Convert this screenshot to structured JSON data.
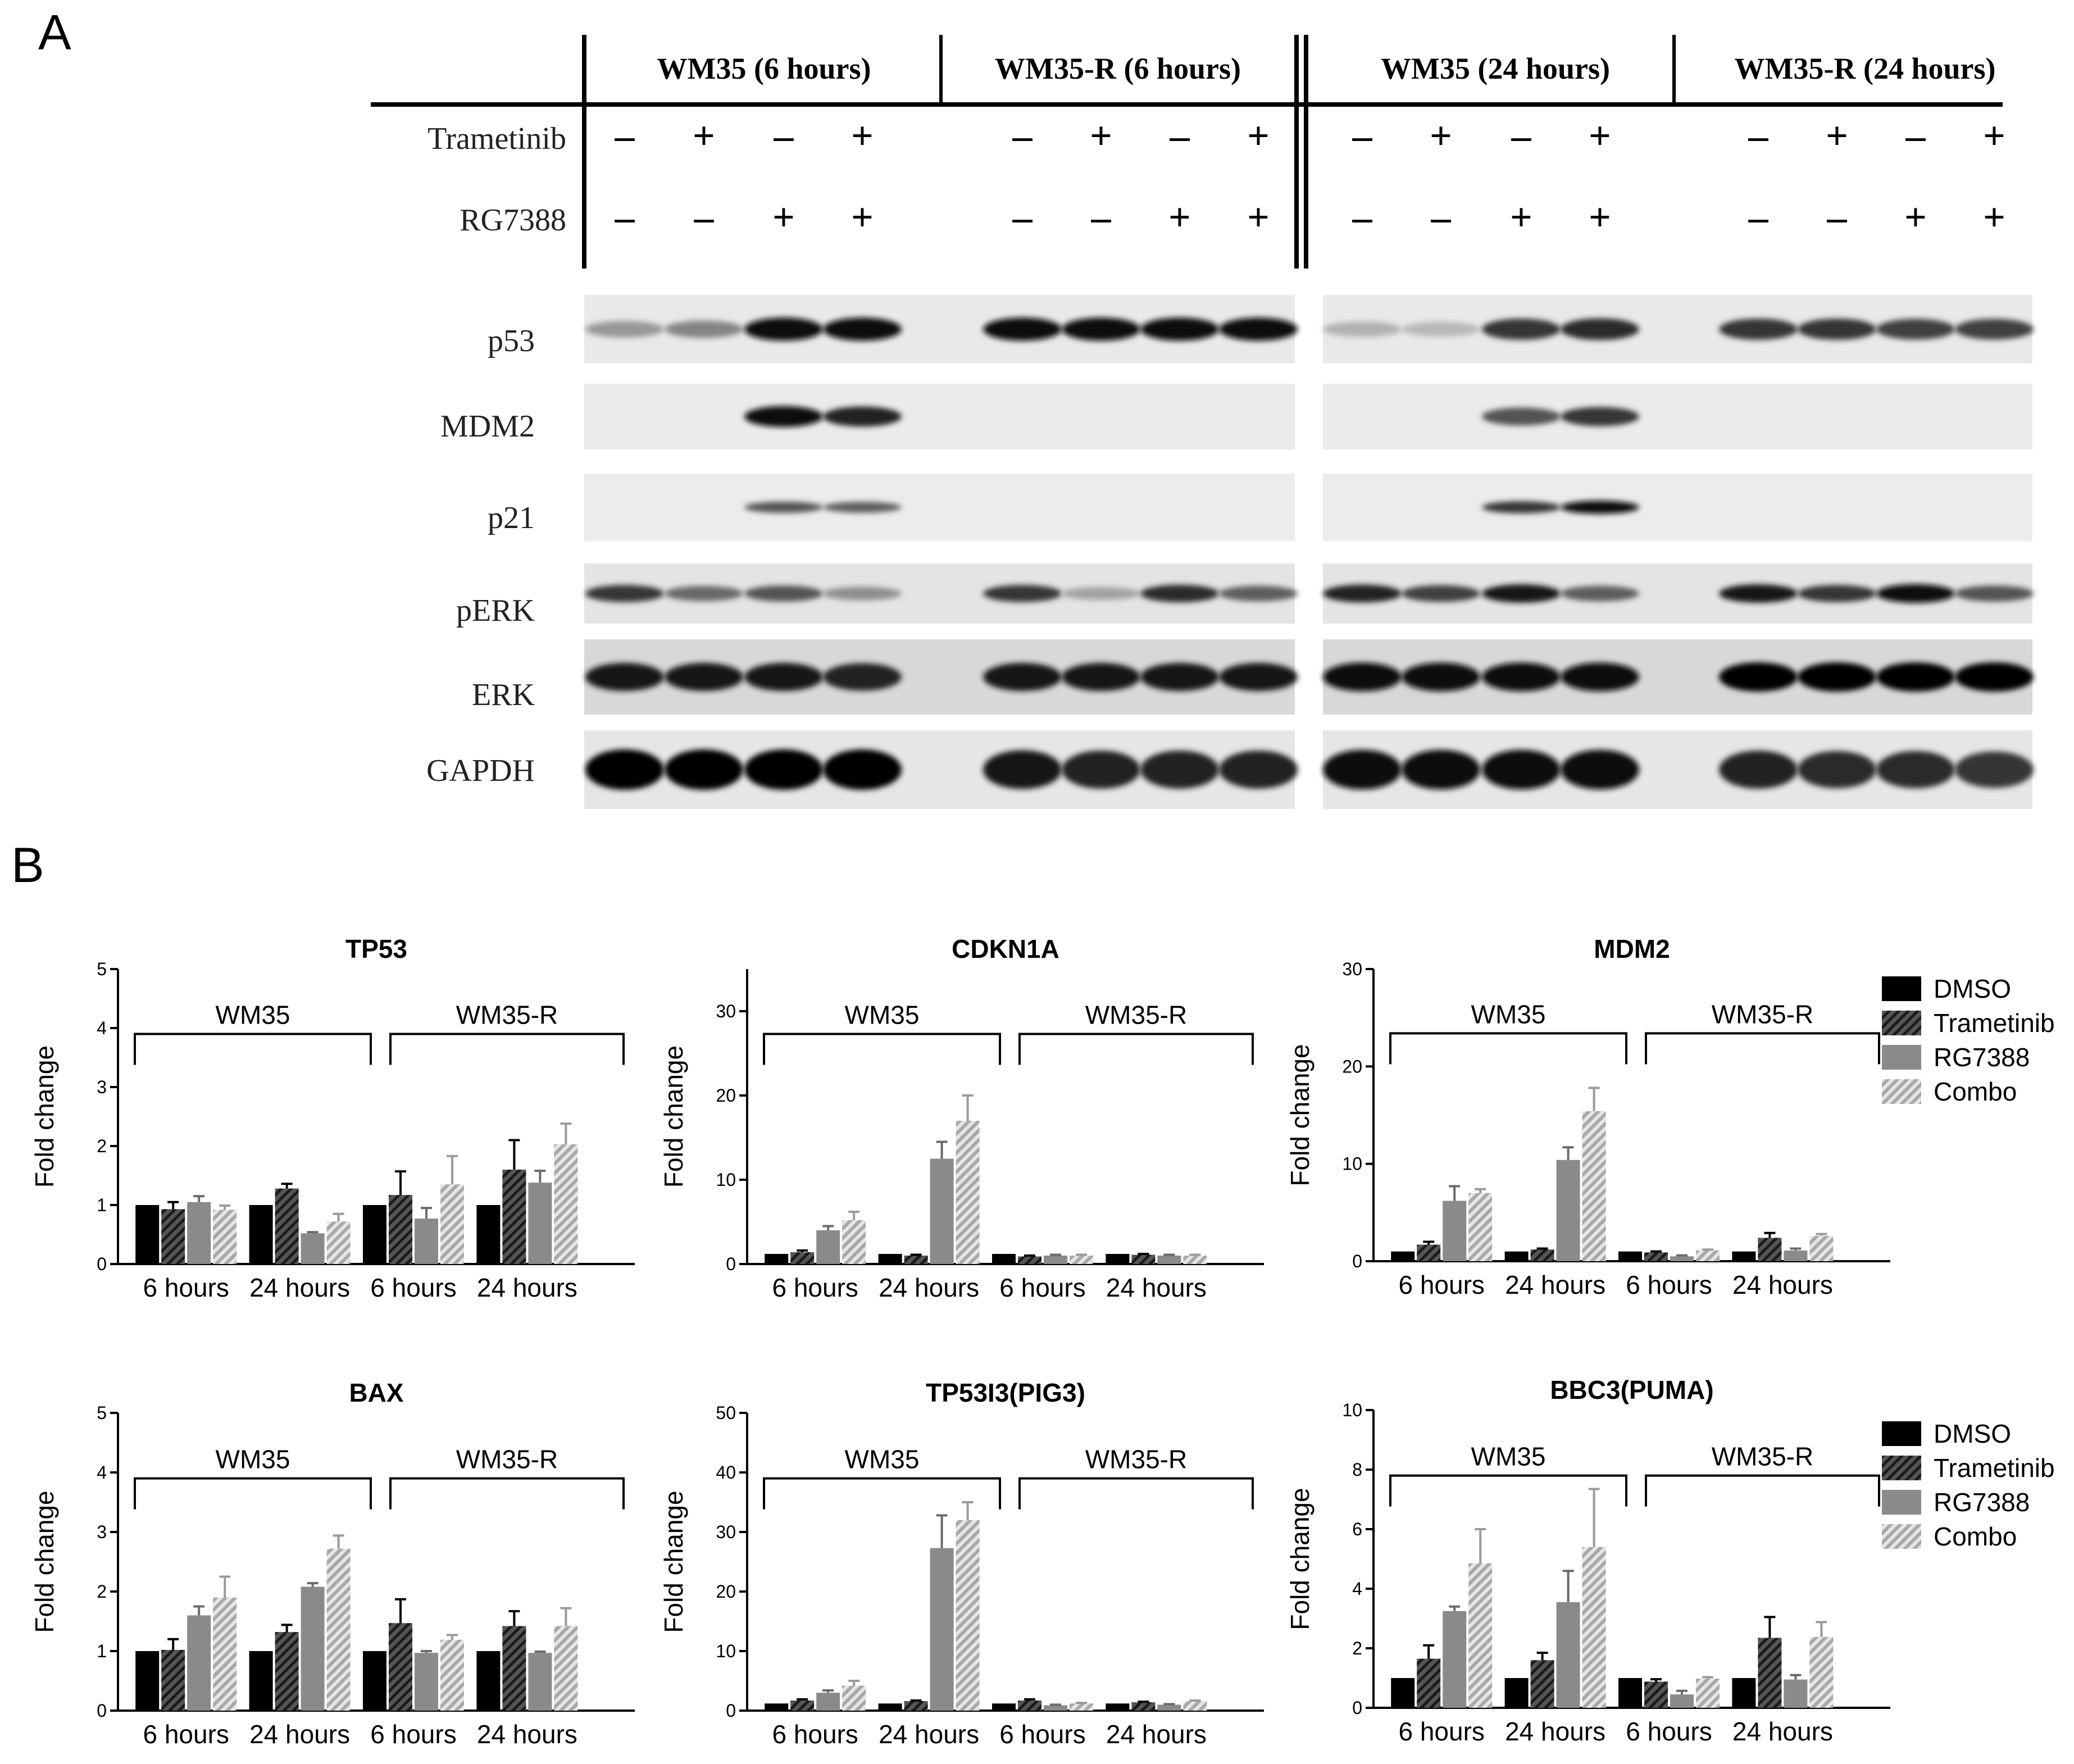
{
  "panel_a": {
    "label": "A",
    "groups": [
      "WM35 (6 hours)",
      "WM35-R (6 hours)",
      "WM35 (24 hours)",
      "WM35-R (24 hours)"
    ],
    "treatments": [
      {
        "name": "Trametinib",
        "signs": [
          "-",
          "+",
          "-",
          "+",
          "-",
          "+",
          "-",
          "+",
          "-",
          "+",
          "-",
          "+",
          "-",
          "+",
          "-",
          "+"
        ]
      },
      {
        "name": "RG7388",
        "signs": [
          "-",
          "-",
          "+",
          "+",
          "-",
          "-",
          "+",
          "+",
          "-",
          "-",
          "+",
          "+",
          "-",
          "-",
          "+",
          "+"
        ]
      }
    ],
    "proteins": [
      "p53",
      "MDM2",
      "p21",
      "pERK",
      "ERK",
      "GAPDH"
    ],
    "band_intensity": {
      "p53": [
        0.25,
        0.35,
        0.95,
        0.95,
        0.95,
        0.95,
        0.95,
        0.95,
        0.12,
        0.08,
        0.75,
        0.8,
        0.75,
        0.75,
        0.7,
        0.7
      ],
      "MDM2": [
        0,
        0,
        0.95,
        0.85,
        0,
        0,
        0,
        0,
        0,
        0,
        0.6,
        0.75,
        0,
        0,
        0,
        0
      ],
      "p21": [
        0,
        0,
        0.6,
        0.55,
        0,
        0,
        0,
        0,
        0,
        0,
        0.75,
        0.95,
        0,
        0,
        0,
        0
      ],
      "pERK": [
        0.75,
        0.5,
        0.6,
        0.3,
        0.75,
        0.2,
        0.8,
        0.55,
        0.85,
        0.7,
        0.9,
        0.55,
        0.9,
        0.75,
        0.95,
        0.6
      ],
      "ERK": [
        0.9,
        0.9,
        0.9,
        0.85,
        0.9,
        0.9,
        0.9,
        0.9,
        0.95,
        0.95,
        0.95,
        0.95,
        1,
        1,
        1,
        1
      ],
      "GAPDH": [
        1,
        1,
        1,
        1,
        0.9,
        0.85,
        0.85,
        0.85,
        0.95,
        0.95,
        0.95,
        0.95,
        0.85,
        0.8,
        0.8,
        0.75
      ]
    }
  },
  "panel_b": {
    "label": "B",
    "legend": [
      {
        "name": "DMSO",
        "color": "#000000",
        "pattern": "solid"
      },
      {
        "name": "Trametinib",
        "color": "#333333",
        "pattern": "hatch"
      },
      {
        "name": "RG7388",
        "color": "#8a8a8a",
        "pattern": "solid"
      },
      {
        "name": "Combo",
        "color": "#bdbdbd",
        "pattern": "hatch"
      }
    ],
    "ylabel": "Fold change",
    "bracket_labels": [
      "WM35",
      "WM35-R"
    ]
  },
  "chart_data": [
    {
      "type": "bar",
      "title": "TP53",
      "ylabel": "Fold change",
      "ylim": [
        0,
        5
      ],
      "yticks": [
        0,
        1,
        2,
        3,
        4,
        5
      ],
      "categories": [
        "6 hours",
        "24 hours",
        "6 hours",
        "24 hours"
      ],
      "series": [
        {
          "name": "DMSO",
          "values": [
            1.0,
            1.0,
            1.0,
            1.0
          ],
          "errors": [
            0,
            0,
            0,
            0
          ]
        },
        {
          "name": "Trametinib",
          "values": [
            0.93,
            1.28,
            1.17,
            1.6
          ],
          "errors": [
            0.12,
            0.08,
            0.4,
            0.5
          ]
        },
        {
          "name": "RG7388",
          "values": [
            1.05,
            0.52,
            0.77,
            1.38
          ],
          "errors": [
            0.1,
            0.02,
            0.18,
            0.2
          ]
        },
        {
          "name": "Combo",
          "values": [
            0.92,
            0.72,
            1.35,
            2.03
          ],
          "errors": [
            0.07,
            0.13,
            0.48,
            0.35
          ]
        }
      ]
    },
    {
      "type": "bar",
      "title": "CDKN1A",
      "ylabel": "Fold change",
      "ylim": [
        0,
        35
      ],
      "yticks": [
        0,
        10,
        20,
        30
      ],
      "categories": [
        "6 hours",
        "24 hours",
        "6 hours",
        "24 hours"
      ],
      "series": [
        {
          "name": "DMSO",
          "values": [
            1.2,
            1.2,
            1.2,
            1.2
          ],
          "errors": [
            0,
            0,
            0,
            0
          ]
        },
        {
          "name": "Trametinib",
          "values": [
            1.4,
            1.0,
            0.9,
            1.1
          ],
          "errors": [
            0.2,
            0.1,
            0.1,
            0.1
          ]
        },
        {
          "name": "RG7388",
          "values": [
            4.0,
            12.5,
            1.0,
            1.0
          ],
          "errors": [
            0.5,
            2.0,
            0.1,
            0.1
          ]
        },
        {
          "name": "Combo",
          "values": [
            5.2,
            17.0,
            1.0,
            1.0
          ],
          "errors": [
            1.0,
            3.0,
            0.1,
            0.1
          ]
        }
      ]
    },
    {
      "type": "bar",
      "title": "MDM2",
      "ylabel": "Fold change",
      "ylim": [
        0,
        30
      ],
      "yticks": [
        0,
        10,
        20,
        30
      ],
      "categories": [
        "6 hours",
        "24 hours",
        "6 hours",
        "24 hours"
      ],
      "series": [
        {
          "name": "DMSO",
          "values": [
            1.0,
            1.0,
            1.0,
            1.0
          ],
          "errors": [
            0,
            0,
            0,
            0
          ]
        },
        {
          "name": "Trametinib",
          "values": [
            1.7,
            1.2,
            0.9,
            2.4
          ],
          "errors": [
            0.3,
            0.1,
            0.1,
            0.5
          ]
        },
        {
          "name": "RG7388",
          "values": [
            6.2,
            10.4,
            0.5,
            1.1
          ],
          "errors": [
            1.5,
            1.3,
            0.1,
            0.2
          ]
        },
        {
          "name": "Combo",
          "values": [
            7.0,
            15.4,
            1.1,
            2.6
          ],
          "errors": [
            0.4,
            2.4,
            0.1,
            0.2
          ]
        }
      ]
    },
    {
      "type": "bar",
      "title": "BAX",
      "ylabel": "Fold change",
      "ylim": [
        0,
        5
      ],
      "yticks": [
        0,
        1,
        2,
        3,
        4,
        5
      ],
      "categories": [
        "6 hours",
        "24 hours",
        "6 hours",
        "24 hours"
      ],
      "series": [
        {
          "name": "DMSO",
          "values": [
            1.0,
            1.0,
            1.0,
            1.0
          ],
          "errors": [
            0,
            0,
            0,
            0
          ]
        },
        {
          "name": "Trametinib",
          "values": [
            1.02,
            1.32,
            1.47,
            1.42
          ],
          "errors": [
            0.18,
            0.12,
            0.4,
            0.25
          ]
        },
        {
          "name": "RG7388",
          "values": [
            1.6,
            2.08,
            0.97,
            0.97
          ],
          "errors": [
            0.15,
            0.06,
            0.03,
            0.02
          ]
        },
        {
          "name": "Combo",
          "values": [
            1.9,
            2.72,
            1.19,
            1.42
          ],
          "errors": [
            0.35,
            0.22,
            0.08,
            0.3
          ]
        }
      ]
    },
    {
      "type": "bar",
      "title": "TP53I3(PIG3)",
      "ylabel": "Fold change",
      "ylim": [
        0,
        50
      ],
      "yticks": [
        0,
        10,
        20,
        30,
        40,
        50
      ],
      "categories": [
        "6 hours",
        "24 hours",
        "6 hours",
        "24 hours"
      ],
      "series": [
        {
          "name": "DMSO",
          "values": [
            1.2,
            1.2,
            1.2,
            1.2
          ],
          "errors": [
            0,
            0,
            0,
            0
          ]
        },
        {
          "name": "Trametinib",
          "values": [
            1.7,
            1.6,
            1.7,
            1.4
          ],
          "errors": [
            0.2,
            0.1,
            0.2,
            0.1
          ]
        },
        {
          "name": "RG7388",
          "values": [
            3.0,
            27.3,
            0.9,
            1.0
          ],
          "errors": [
            0.4,
            5.5,
            0.1,
            0.1
          ]
        },
        {
          "name": "Combo",
          "values": [
            4.2,
            32.0,
            1.2,
            1.6
          ],
          "errors": [
            0.8,
            3.0,
            0.1,
            0.1
          ]
        }
      ]
    },
    {
      "type": "bar",
      "title": "BBC3(PUMA)",
      "ylabel": "Fold change",
      "ylim": [
        0,
        10
      ],
      "yticks": [
        0,
        2,
        4,
        6,
        8,
        10
      ],
      "categories": [
        "6 hours",
        "24 hours",
        "6 hours",
        "24 hours"
      ],
      "series": [
        {
          "name": "DMSO",
          "values": [
            1.0,
            1.0,
            1.0,
            1.0
          ],
          "errors": [
            0,
            0,
            0,
            0
          ]
        },
        {
          "name": "Trametinib",
          "values": [
            1.65,
            1.6,
            0.88,
            2.35
          ],
          "errors": [
            0.45,
            0.25,
            0.08,
            0.7
          ]
        },
        {
          "name": "RG7388",
          "values": [
            3.25,
            3.55,
            0.45,
            0.95
          ],
          "errors": [
            0.15,
            1.05,
            0.12,
            0.15
          ]
        },
        {
          "name": "Combo",
          "values": [
            4.85,
            5.4,
            0.98,
            2.38
          ],
          "errors": [
            1.15,
            1.95,
            0.05,
            0.5
          ]
        }
      ]
    }
  ]
}
